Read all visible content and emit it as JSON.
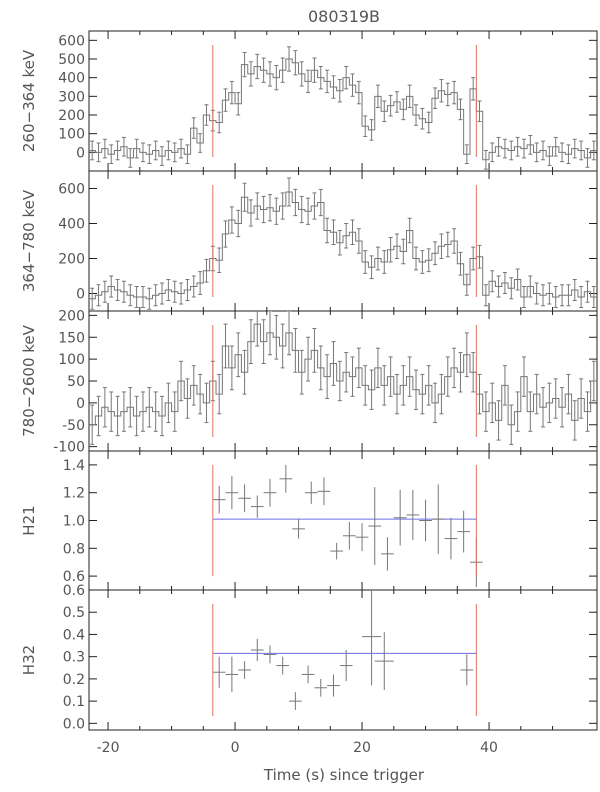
{
  "title": "080319B",
  "xlabel": "Time (s) since trigger",
  "colors": {
    "data": "#777777",
    "frame": "#222222",
    "marker_lines": "#e07060",
    "fit_line": "#6c6ce6",
    "text": "#555555"
  },
  "chart_data": [
    {
      "type": "line",
      "style": "histogram-with-errorbars",
      "ylabel": "260−364 keV",
      "xlim": [
        -23,
        57
      ],
      "ylim": [
        -100,
        650
      ],
      "yticks": [
        0,
        100,
        200,
        300,
        400,
        500,
        600
      ],
      "xticks": [
        -20,
        0,
        20,
        40
      ],
      "bin_width": 1,
      "x": [
        -23,
        -22,
        -21,
        -20,
        -19,
        -18,
        -17,
        -16,
        -15,
        -14,
        -13,
        -12,
        -11,
        -10,
        -9,
        -8,
        -7,
        -6,
        -5,
        -4,
        -3,
        -2,
        -1,
        0,
        1,
        2,
        3,
        4,
        5,
        6,
        7,
        8,
        9,
        10,
        11,
        12,
        13,
        14,
        15,
        16,
        17,
        18,
        19,
        20,
        21,
        22,
        23,
        24,
        25,
        26,
        27,
        28,
        29,
        30,
        31,
        32,
        33,
        34,
        35,
        36,
        37,
        38,
        39,
        40,
        41,
        42,
        43,
        44,
        45,
        46,
        47,
        48,
        49,
        50,
        51,
        52,
        53,
        54,
        55,
        56
      ],
      "values": [
        10,
        0,
        20,
        -10,
        10,
        30,
        -30,
        20,
        0,
        -10,
        10,
        -20,
        10,
        0,
        20,
        -10,
        130,
        50,
        200,
        170,
        160,
        280,
        320,
        260,
        470,
        420,
        460,
        440,
        420,
        400,
        440,
        500,
        480,
        420,
        380,
        440,
        400,
        380,
        350,
        330,
        400,
        360,
        320,
        140,
        120,
        300,
        220,
        250,
        270,
        230,
        300,
        200,
        180,
        160,
        290,
        330,
        310,
        320,
        230,
        -10,
        340,
        220,
        -40,
        0,
        30,
        20,
        10,
        30,
        20,
        40,
        0,
        10,
        -20,
        30,
        0,
        -10,
        20,
        10,
        -30,
        10
      ],
      "errors": [
        50,
        50,
        50,
        50,
        50,
        50,
        50,
        50,
        50,
        50,
        50,
        50,
        50,
        50,
        50,
        50,
        55,
        50,
        55,
        55,
        55,
        60,
        60,
        60,
        65,
        65,
        65,
        65,
        65,
        65,
        65,
        65,
        65,
        65,
        60,
        65,
        60,
        60,
        60,
        60,
        60,
        60,
        60,
        55,
        55,
        60,
        55,
        55,
        55,
        55,
        60,
        55,
        55,
        55,
        55,
        60,
        60,
        60,
        55,
        50,
        60,
        55,
        50,
        50,
        50,
        50,
        50,
        50,
        50,
        50,
        50,
        50,
        50,
        50,
        50,
        50,
        50,
        50,
        50,
        50
      ],
      "vlines": [
        -3.5,
        38
      ]
    },
    {
      "type": "line",
      "style": "histogram-with-errorbars",
      "ylabel": "364−780 keV",
      "xlim": [
        -23,
        57
      ],
      "ylim": [
        -100,
        700
      ],
      "yticks": [
        0,
        200,
        400,
        600
      ],
      "xticks": [
        -20,
        0,
        20,
        40
      ],
      "bin_width": 1,
      "x": [
        -23,
        -22,
        -21,
        -20,
        -19,
        -18,
        -17,
        -16,
        -15,
        -14,
        -13,
        -12,
        -11,
        -10,
        -9,
        -8,
        -7,
        -6,
        -5,
        -4,
        -3,
        -2,
        -1,
        0,
        1,
        2,
        3,
        4,
        5,
        6,
        7,
        8,
        9,
        10,
        11,
        12,
        13,
        14,
        15,
        16,
        17,
        18,
        19,
        20,
        21,
        22,
        23,
        24,
        25,
        26,
        27,
        28,
        29,
        30,
        31,
        32,
        33,
        34,
        35,
        36,
        37,
        38,
        39,
        40,
        41,
        42,
        43,
        44,
        45,
        46,
        47,
        48,
        49,
        50,
        51,
        52,
        53,
        54,
        55,
        56
      ],
      "values": [
        -30,
        -10,
        10,
        40,
        20,
        10,
        -10,
        -20,
        -20,
        -30,
        -10,
        0,
        20,
        10,
        0,
        20,
        40,
        60,
        130,
        200,
        190,
        340,
        420,
        400,
        550,
        460,
        500,
        480,
        490,
        470,
        500,
        580,
        520,
        480,
        470,
        500,
        520,
        360,
        350,
        290,
        330,
        350,
        300,
        180,
        150,
        200,
        180,
        250,
        270,
        240,
        360,
        200,
        180,
        190,
        230,
        270,
        280,
        300,
        170,
        50,
        200,
        210,
        -10,
        70,
        40,
        60,
        30,
        80,
        -20,
        40,
        0,
        -10,
        0,
        -20,
        -10,
        -10,
        20,
        -20,
        10,
        -20
      ],
      "errors": [
        60,
        60,
        60,
        60,
        60,
        60,
        60,
        60,
        60,
        60,
        60,
        60,
        60,
        60,
        60,
        60,
        60,
        65,
        65,
        70,
        70,
        75,
        75,
        75,
        80,
        75,
        75,
        75,
        75,
        75,
        75,
        80,
        75,
        75,
        75,
        75,
        75,
        70,
        70,
        70,
        70,
        70,
        70,
        65,
        65,
        65,
        65,
        70,
        70,
        70,
        70,
        65,
        65,
        65,
        65,
        70,
        70,
        70,
        65,
        60,
        65,
        65,
        60,
        60,
        60,
        60,
        60,
        60,
        60,
        60,
        60,
        60,
        60,
        60,
        60,
        60,
        60,
        60,
        60,
        60
      ],
      "vlines": [
        -3.5,
        38
      ]
    },
    {
      "type": "line",
      "style": "histogram-with-errorbars",
      "ylabel": "780−2600 keV",
      "xlim": [
        -23,
        57
      ],
      "ylim": [
        -110,
        210
      ],
      "yticks": [
        -100,
        -50,
        0,
        50,
        100,
        150,
        200
      ],
      "xticks": [
        -20,
        0,
        20,
        40
      ],
      "bin_width": 1,
      "x": [
        -23,
        -22,
        -21,
        -20,
        -19,
        -18,
        -17,
        -16,
        -15,
        -14,
        -13,
        -12,
        -11,
        -10,
        -9,
        -8,
        -7,
        -6,
        -5,
        -4,
        -3,
        -2,
        -1,
        0,
        1,
        2,
        3,
        4,
        5,
        6,
        7,
        8,
        9,
        10,
        11,
        12,
        13,
        14,
        15,
        16,
        17,
        18,
        19,
        20,
        21,
        22,
        23,
        24,
        25,
        26,
        27,
        28,
        29,
        30,
        31,
        32,
        33,
        34,
        35,
        36,
        37,
        38,
        39,
        40,
        41,
        42,
        43,
        44,
        45,
        46,
        47,
        48,
        49,
        50,
        51,
        52,
        53,
        54,
        55,
        56
      ],
      "values": [
        -50,
        -30,
        -10,
        -20,
        -30,
        -20,
        -10,
        -30,
        -20,
        -10,
        -20,
        -30,
        0,
        -20,
        50,
        10,
        40,
        20,
        0,
        50,
        20,
        130,
        80,
        110,
        70,
        140,
        180,
        140,
        160,
        150,
        130,
        160,
        120,
        70,
        100,
        120,
        80,
        60,
        90,
        50,
        70,
        60,
        80,
        40,
        30,
        80,
        40,
        60,
        20,
        40,
        60,
        30,
        20,
        40,
        0,
        20,
        60,
        80,
        70,
        110,
        70,
        20,
        -20,
        0,
        -40,
        40,
        -50,
        -20,
        60,
        -20,
        20,
        -10,
        0,
        10,
        -10,
        20,
        -40,
        10,
        -20,
        50
      ],
      "errors": [
        45,
        45,
        45,
        45,
        45,
        45,
        45,
        45,
        45,
        45,
        45,
        45,
        45,
        45,
        45,
        45,
        45,
        45,
        45,
        45,
        45,
        50,
        50,
        50,
        50,
        50,
        50,
        50,
        50,
        50,
        50,
        50,
        50,
        50,
        50,
        50,
        50,
        50,
        50,
        45,
        45,
        45,
        45,
        45,
        45,
        45,
        45,
        45,
        45,
        45,
        45,
        45,
        45,
        45,
        45,
        45,
        45,
        45,
        45,
        50,
        45,
        45,
        45,
        45,
        45,
        45,
        45,
        45,
        45,
        45,
        45,
        45,
        45,
        45,
        45,
        45,
        45,
        45,
        45,
        45
      ],
      "vlines": [
        -3.5,
        38
      ]
    },
    {
      "type": "scatter",
      "style": "errorbars",
      "ylabel": "H21",
      "xlim": [
        -23,
        57
      ],
      "ylim": [
        0.5,
        1.5
      ],
      "yticks": [
        0.6,
        0.8,
        1.0,
        1.2,
        1.4
      ],
      "xticks": [
        -20,
        0,
        20,
        40
      ],
      "x": [
        -2.5,
        -0.5,
        1.5,
        3.5,
        5.5,
        8,
        10,
        12,
        14,
        16,
        18,
        20,
        22,
        24,
        26,
        28,
        30,
        32,
        34,
        36,
        38
      ],
      "xerr": [
        1,
        1,
        1,
        1,
        1,
        1,
        1,
        1,
        1,
        1,
        1,
        1,
        1,
        1,
        1,
        1,
        1,
        1,
        1,
        1,
        1
      ],
      "values": [
        1.15,
        1.2,
        1.16,
        1.1,
        1.2,
        1.3,
        0.94,
        1.2,
        1.21,
        0.78,
        0.89,
        0.88,
        0.96,
        0.76,
        1.02,
        1.04,
        1.0,
        1.01,
        0.87,
        0.92,
        0.7
      ],
      "errors": [
        0.1,
        0.12,
        0.1,
        0.08,
        0.1,
        0.1,
        0.07,
        0.08,
        0.1,
        0.06,
        0.1,
        0.1,
        0.28,
        0.12,
        0.2,
        0.18,
        0.15,
        0.25,
        0.15,
        0.15,
        0.18
      ],
      "fit_level": 1.01,
      "fit_range": [
        -3.5,
        38
      ],
      "vlines": [
        -3.5,
        38
      ]
    },
    {
      "type": "scatter",
      "style": "errorbars",
      "ylabel": "H32",
      "xlim": [
        -23,
        57
      ],
      "ylim": [
        -0.03,
        0.6
      ],
      "yticks": [
        0.0,
        0.1,
        0.2,
        0.3,
        0.4,
        0.5,
        0.6
      ],
      "xticks": [
        -20,
        0,
        20,
        40
      ],
      "x": [
        -2.5,
        -0.5,
        1.5,
        3.5,
        5.5,
        7.5,
        9.5,
        11.5,
        13.5,
        15.5,
        17.5,
        21.5,
        23.5,
        36.5
      ],
      "xerr": [
        1,
        1,
        1,
        1,
        1,
        1,
        1,
        1,
        1,
        1,
        1,
        1.5,
        1.5,
        1
      ],
      "values": [
        0.23,
        0.22,
        0.24,
        0.33,
        0.31,
        0.26,
        0.1,
        0.22,
        0.16,
        0.17,
        0.26,
        0.39,
        0.28,
        0.24
      ],
      "errors": [
        0.07,
        0.08,
        0.04,
        0.05,
        0.04,
        0.04,
        0.04,
        0.04,
        0.04,
        0.05,
        0.07,
        0.22,
        0.13,
        0.07
      ],
      "fit_level": 0.315,
      "fit_range": [
        -3.5,
        38
      ],
      "vlines": [
        -3.5,
        38
      ]
    }
  ]
}
